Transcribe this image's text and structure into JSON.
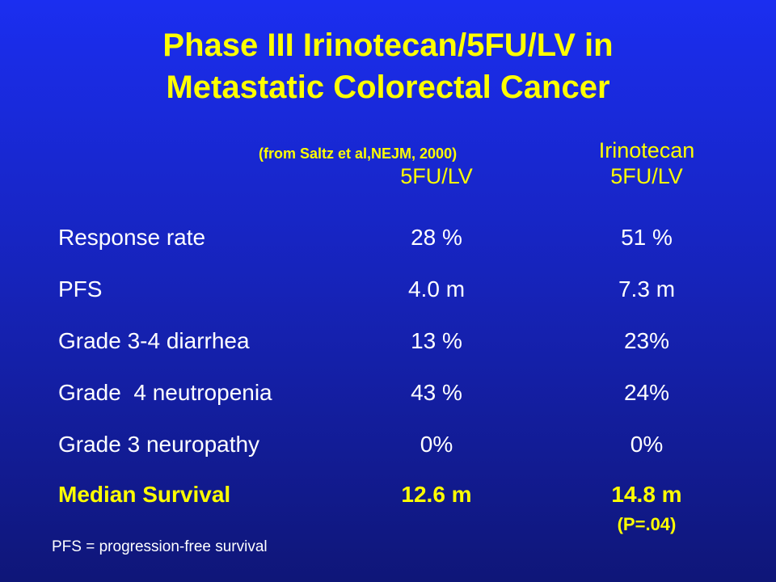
{
  "title": {
    "line1": "Phase III Irinotecan/5FU/LV in",
    "line2": "Metastatic Colorectal Cancer"
  },
  "source": "(from Saltz et al,NEJM, 2000)",
  "columns": {
    "col1": {
      "line1": "5FU/LV"
    },
    "col2": {
      "line1": "Irinotecan",
      "line2": "5FU/LV"
    }
  },
  "rows": [
    {
      "label": "Response rate",
      "v1": "28 %",
      "v2": "51 %"
    },
    {
      "label": "PFS",
      "v1": "4.0 m",
      "v2": "7.3 m"
    },
    {
      "label": "Grade 3-4 diarrhea",
      "v1": "13 %",
      "v2": "23%"
    },
    {
      "label": "Grade  4 neutropenia",
      "v1": "43 %",
      "v2": "24%"
    },
    {
      "label": "Grade 3 neuropathy",
      "v1": "0%",
      "v2": "0%"
    },
    {
      "label": "Median Survival",
      "v1": "12.6 m",
      "v2": "14.8 m"
    }
  ],
  "p_value": "(P=.04)",
  "footnote": "PFS = progression-free survival",
  "colors": {
    "title": "#ffff00",
    "text": "#ffffff",
    "background_top": "#1b2ef0",
    "background_bottom": "#0f1678"
  }
}
